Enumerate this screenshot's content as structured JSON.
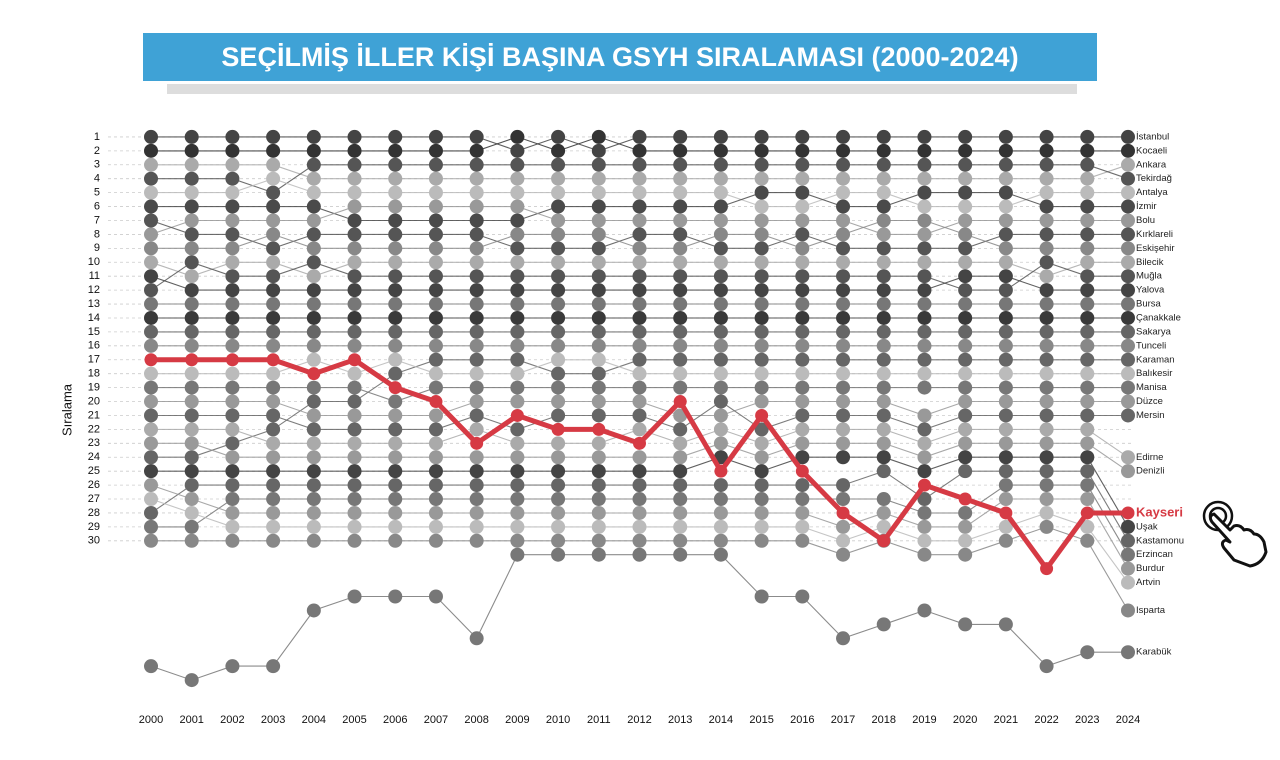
{
  "chart_data": {
    "type": "bump",
    "title": "SEÇİLMİŞ İLLER KİŞİ BAŞINA GSYH SIRALAMASI (2000-2024)",
    "y_label": "Sıralama",
    "x": [
      "2000",
      "2001",
      "2002",
      "2003",
      "2004",
      "2005",
      "2006",
      "2007",
      "2008",
      "2009",
      "2010",
      "2011",
      "2012",
      "2013",
      "2014",
      "2015",
      "2016",
      "2017",
      "2018",
      "2019",
      "2020",
      "2021",
      "2022",
      "2023",
      "2024"
    ],
    "ylim": [
      0,
      41
    ],
    "y_inverted": true,
    "grid": true,
    "yticks": [
      1,
      2,
      3,
      4,
      5,
      6,
      7,
      8,
      9,
      10,
      11,
      12,
      13,
      14,
      15,
      16,
      17,
      18,
      19,
      20,
      21,
      22,
      23,
      24,
      25,
      26,
      27,
      28,
      29,
      30
    ],
    "series": [
      {
        "name": "İstanbul",
        "color": "#444444",
        "values": [
          1,
          1,
          1,
          1,
          1,
          1,
          1,
          1,
          1,
          2,
          1,
          2,
          1,
          1,
          1,
          1,
          1,
          1,
          1,
          1,
          1,
          1,
          1,
          1,
          1
        ]
      },
      {
        "name": "Kocaeli",
        "color": "#333333",
        "values": [
          2,
          2,
          2,
          2,
          2,
          2,
          2,
          2,
          2,
          1,
          2,
          1,
          2,
          2,
          2,
          2,
          2,
          2,
          2,
          2,
          2,
          2,
          2,
          2,
          2
        ]
      },
      {
        "name": "Ankara",
        "color": "#aaaaaa",
        "values": [
          3,
          3,
          3,
          3,
          4,
          4,
          4,
          4,
          4,
          4,
          4,
          4,
          4,
          4,
          4,
          4,
          4,
          4,
          4,
          4,
          4,
          4,
          4,
          4,
          3
        ]
      },
      {
        "name": "Tekirdağ",
        "color": "#555555",
        "values": [
          4,
          4,
          4,
          5,
          3,
          3,
          3,
          3,
          3,
          3,
          3,
          3,
          3,
          3,
          3,
          3,
          3,
          3,
          3,
          3,
          3,
          3,
          3,
          3,
          4
        ]
      },
      {
        "name": "Antalya",
        "color": "#bbbbbb",
        "values": [
          5,
          5,
          5,
          4,
          5,
          5,
          5,
          5,
          5,
          5,
          5,
          5,
          5,
          5,
          5,
          6,
          6,
          5,
          5,
          6,
          6,
          6,
          5,
          5,
          5
        ]
      },
      {
        "name": "İzmir",
        "color": "#4a4a4a",
        "values": [
          6,
          6,
          6,
          6,
          6,
          7,
          7,
          7,
          7,
          7,
          6,
          6,
          6,
          6,
          6,
          5,
          5,
          6,
          6,
          5,
          5,
          5,
          6,
          6,
          6
        ]
      },
      {
        "name": "Bolu",
        "color": "#999999",
        "values": [
          8,
          7,
          7,
          7,
          7,
          6,
          6,
          6,
          6,
          6,
          7,
          7,
          7,
          7,
          7,
          7,
          7,
          7,
          8,
          8,
          7,
          7,
          7,
          7,
          7
        ]
      },
      {
        "name": "Kırklareli",
        "color": "#555555",
        "values": [
          7,
          8,
          8,
          9,
          8,
          8,
          8,
          8,
          8,
          9,
          9,
          9,
          8,
          8,
          9,
          9,
          8,
          9,
          9,
          9,
          9,
          8,
          8,
          8,
          8
        ]
      },
      {
        "name": "Eskişehir",
        "color": "#888888",
        "values": [
          9,
          9,
          9,
          8,
          9,
          9,
          9,
          9,
          9,
          8,
          8,
          8,
          9,
          9,
          8,
          8,
          9,
          8,
          7,
          7,
          8,
          9,
          9,
          9,
          9
        ]
      },
      {
        "name": "Bilecik",
        "color": "#aaaaaa",
        "values": [
          10,
          11,
          10,
          10,
          11,
          10,
          10,
          10,
          10,
          10,
          10,
          10,
          10,
          10,
          10,
          10,
          10,
          10,
          10,
          10,
          10,
          10,
          11,
          10,
          10
        ]
      },
      {
        "name": "Muğla",
        "color": "#555555",
        "values": [
          12,
          10,
          11,
          11,
          10,
          11,
          11,
          11,
          11,
          11,
          11,
          11,
          11,
          11,
          11,
          11,
          11,
          11,
          11,
          11,
          12,
          12,
          10,
          11,
          11
        ]
      },
      {
        "name": "Yalova",
        "color": "#444444",
        "values": [
          11,
          12,
          12,
          12,
          12,
          12,
          12,
          12,
          12,
          12,
          12,
          12,
          12,
          12,
          12,
          12,
          12,
          12,
          12,
          12,
          11,
          11,
          12,
          12,
          12
        ]
      },
      {
        "name": "Bursa",
        "color": "#777777",
        "values": [
          13,
          13,
          13,
          13,
          13,
          13,
          13,
          13,
          13,
          13,
          13,
          13,
          13,
          13,
          13,
          13,
          13,
          13,
          13,
          13,
          13,
          13,
          13,
          13,
          13
        ]
      },
      {
        "name": "Çanakkale",
        "color": "#3a3a3a",
        "values": [
          14,
          14,
          14,
          14,
          14,
          14,
          14,
          14,
          14,
          14,
          14,
          14,
          14,
          14,
          14,
          14,
          14,
          14,
          14,
          14,
          14,
          14,
          14,
          14,
          14
        ]
      },
      {
        "name": "Sakarya",
        "color": "#666666",
        "values": [
          15,
          15,
          15,
          15,
          15,
          15,
          15,
          15,
          15,
          15,
          15,
          15,
          15,
          15,
          15,
          15,
          15,
          15,
          15,
          15,
          15,
          15,
          15,
          15,
          15
        ]
      },
      {
        "name": "Tunceli",
        "color": "#888888",
        "values": [
          16,
          16,
          16,
          16,
          16,
          16,
          16,
          16,
          16,
          16,
          16,
          16,
          16,
          16,
          16,
          16,
          16,
          16,
          16,
          16,
          16,
          16,
          16,
          16,
          16
        ]
      },
      {
        "name": "Karaman",
        "color": "#666666",
        "values": [
          24,
          24,
          23,
          22,
          20,
          20,
          18,
          17,
          17,
          17,
          18,
          18,
          17,
          17,
          17,
          17,
          17,
          17,
          17,
          17,
          17,
          17,
          17,
          17,
          17
        ]
      },
      {
        "name": "Balıkesir",
        "color": "#bbbbbb",
        "values": [
          18,
          18,
          18,
          18,
          17,
          18,
          17,
          18,
          18,
          18,
          17,
          17,
          18,
          18,
          18,
          18,
          18,
          18,
          18,
          18,
          18,
          18,
          18,
          18,
          18
        ]
      },
      {
        "name": "Manisa",
        "color": "#777777",
        "values": [
          19,
          19,
          19,
          19,
          19,
          19,
          20,
          19,
          19,
          19,
          19,
          19,
          19,
          19,
          19,
          19,
          19,
          19,
          19,
          19,
          19,
          19,
          19,
          19,
          19
        ]
      },
      {
        "name": "Düzce",
        "color": "#999999",
        "values": [
          20,
          20,
          20,
          20,
          21,
          21,
          21,
          21,
          20,
          20,
          20,
          20,
          20,
          21,
          21,
          20,
          20,
          20,
          20,
          21,
          20,
          20,
          20,
          20,
          20
        ]
      },
      {
        "name": "Mersin",
        "color": "#666666",
        "values": [
          21,
          21,
          21,
          21,
          22,
          22,
          22,
          22,
          21,
          22,
          21,
          21,
          21,
          22,
          20,
          22,
          21,
          21,
          21,
          22,
          21,
          21,
          21,
          21,
          21
        ]
      },
      {
        "name": "Edirne",
        "color": "#aaaaaa",
        "values": [
          22,
          22,
          22,
          23,
          23,
          23,
          23,
          23,
          22,
          23,
          23,
          23,
          22,
          23,
          22,
          23,
          22,
          22,
          22,
          23,
          22,
          22,
          22,
          22,
          24
        ]
      },
      {
        "name": "Denizli",
        "color": "#999999",
        "values": [
          23,
          23,
          24,
          24,
          24,
          24,
          24,
          24,
          24,
          24,
          24,
          24,
          24,
          24,
          23,
          24,
          23,
          23,
          23,
          24,
          23,
          23,
          23,
          23,
          25
        ]
      },
      {
        "name": "Uşak",
        "color": "#444444",
        "values": [
          25,
          25,
          25,
          25,
          25,
          25,
          25,
          25,
          25,
          25,
          25,
          25,
          25,
          25,
          24,
          25,
          24,
          24,
          24,
          25,
          24,
          24,
          24,
          24,
          29
        ]
      },
      {
        "name": "Kastamonu",
        "color": "#666666",
        "values": [
          28,
          26,
          26,
          26,
          26,
          26,
          26,
          26,
          26,
          26,
          26,
          26,
          26,
          26,
          26,
          26,
          26,
          26,
          25,
          27,
          25,
          25,
          25,
          25,
          30
        ]
      },
      {
        "name": "Erzincan",
        "color": "#777777",
        "values": [
          29,
          29,
          27,
          27,
          27,
          27,
          27,
          27,
          27,
          27,
          27,
          27,
          27,
          27,
          27,
          27,
          27,
          27,
          27,
          28,
          28,
          26,
          26,
          26,
          31
        ]
      },
      {
        "name": "Burdur",
        "color": "#999999",
        "values": [
          26,
          27,
          28,
          28,
          28,
          28,
          28,
          28,
          28,
          28,
          28,
          28,
          28,
          28,
          28,
          28,
          28,
          29,
          28,
          29,
          29,
          27,
          27,
          27,
          32
        ]
      },
      {
        "name": "Artvin",
        "color": "#bbbbbb",
        "values": [
          27,
          28,
          29,
          29,
          29,
          29,
          29,
          29,
          29,
          29,
          29,
          29,
          29,
          29,
          29,
          29,
          29,
          30,
          29,
          30,
          30,
          29,
          28,
          29,
          33
        ]
      },
      {
        "name": "Isparta",
        "color": "#888888",
        "values": [
          30,
          30,
          30,
          30,
          30,
          30,
          30,
          30,
          30,
          30,
          30,
          30,
          30,
          30,
          30,
          30,
          30,
          31,
          30,
          31,
          31,
          30,
          29,
          30,
          35
        ]
      },
      {
        "name": "Karabük",
        "color": "#777777",
        "values": [
          39,
          40,
          39,
          39,
          35,
          34,
          34,
          34,
          37,
          31,
          31,
          31,
          31,
          31,
          31,
          34,
          34,
          37,
          36,
          35,
          36,
          36,
          39,
          38,
          38
        ]
      },
      {
        "name": "Kayseri",
        "color": "#d63a44",
        "highlight": true,
        "values": [
          17,
          17,
          17,
          17,
          18,
          17,
          19,
          20,
          23,
          21,
          22,
          22,
          23,
          20,
          25,
          21,
          25,
          28,
          30,
          26,
          27,
          28,
          32,
          28,
          28
        ]
      }
    ]
  }
}
